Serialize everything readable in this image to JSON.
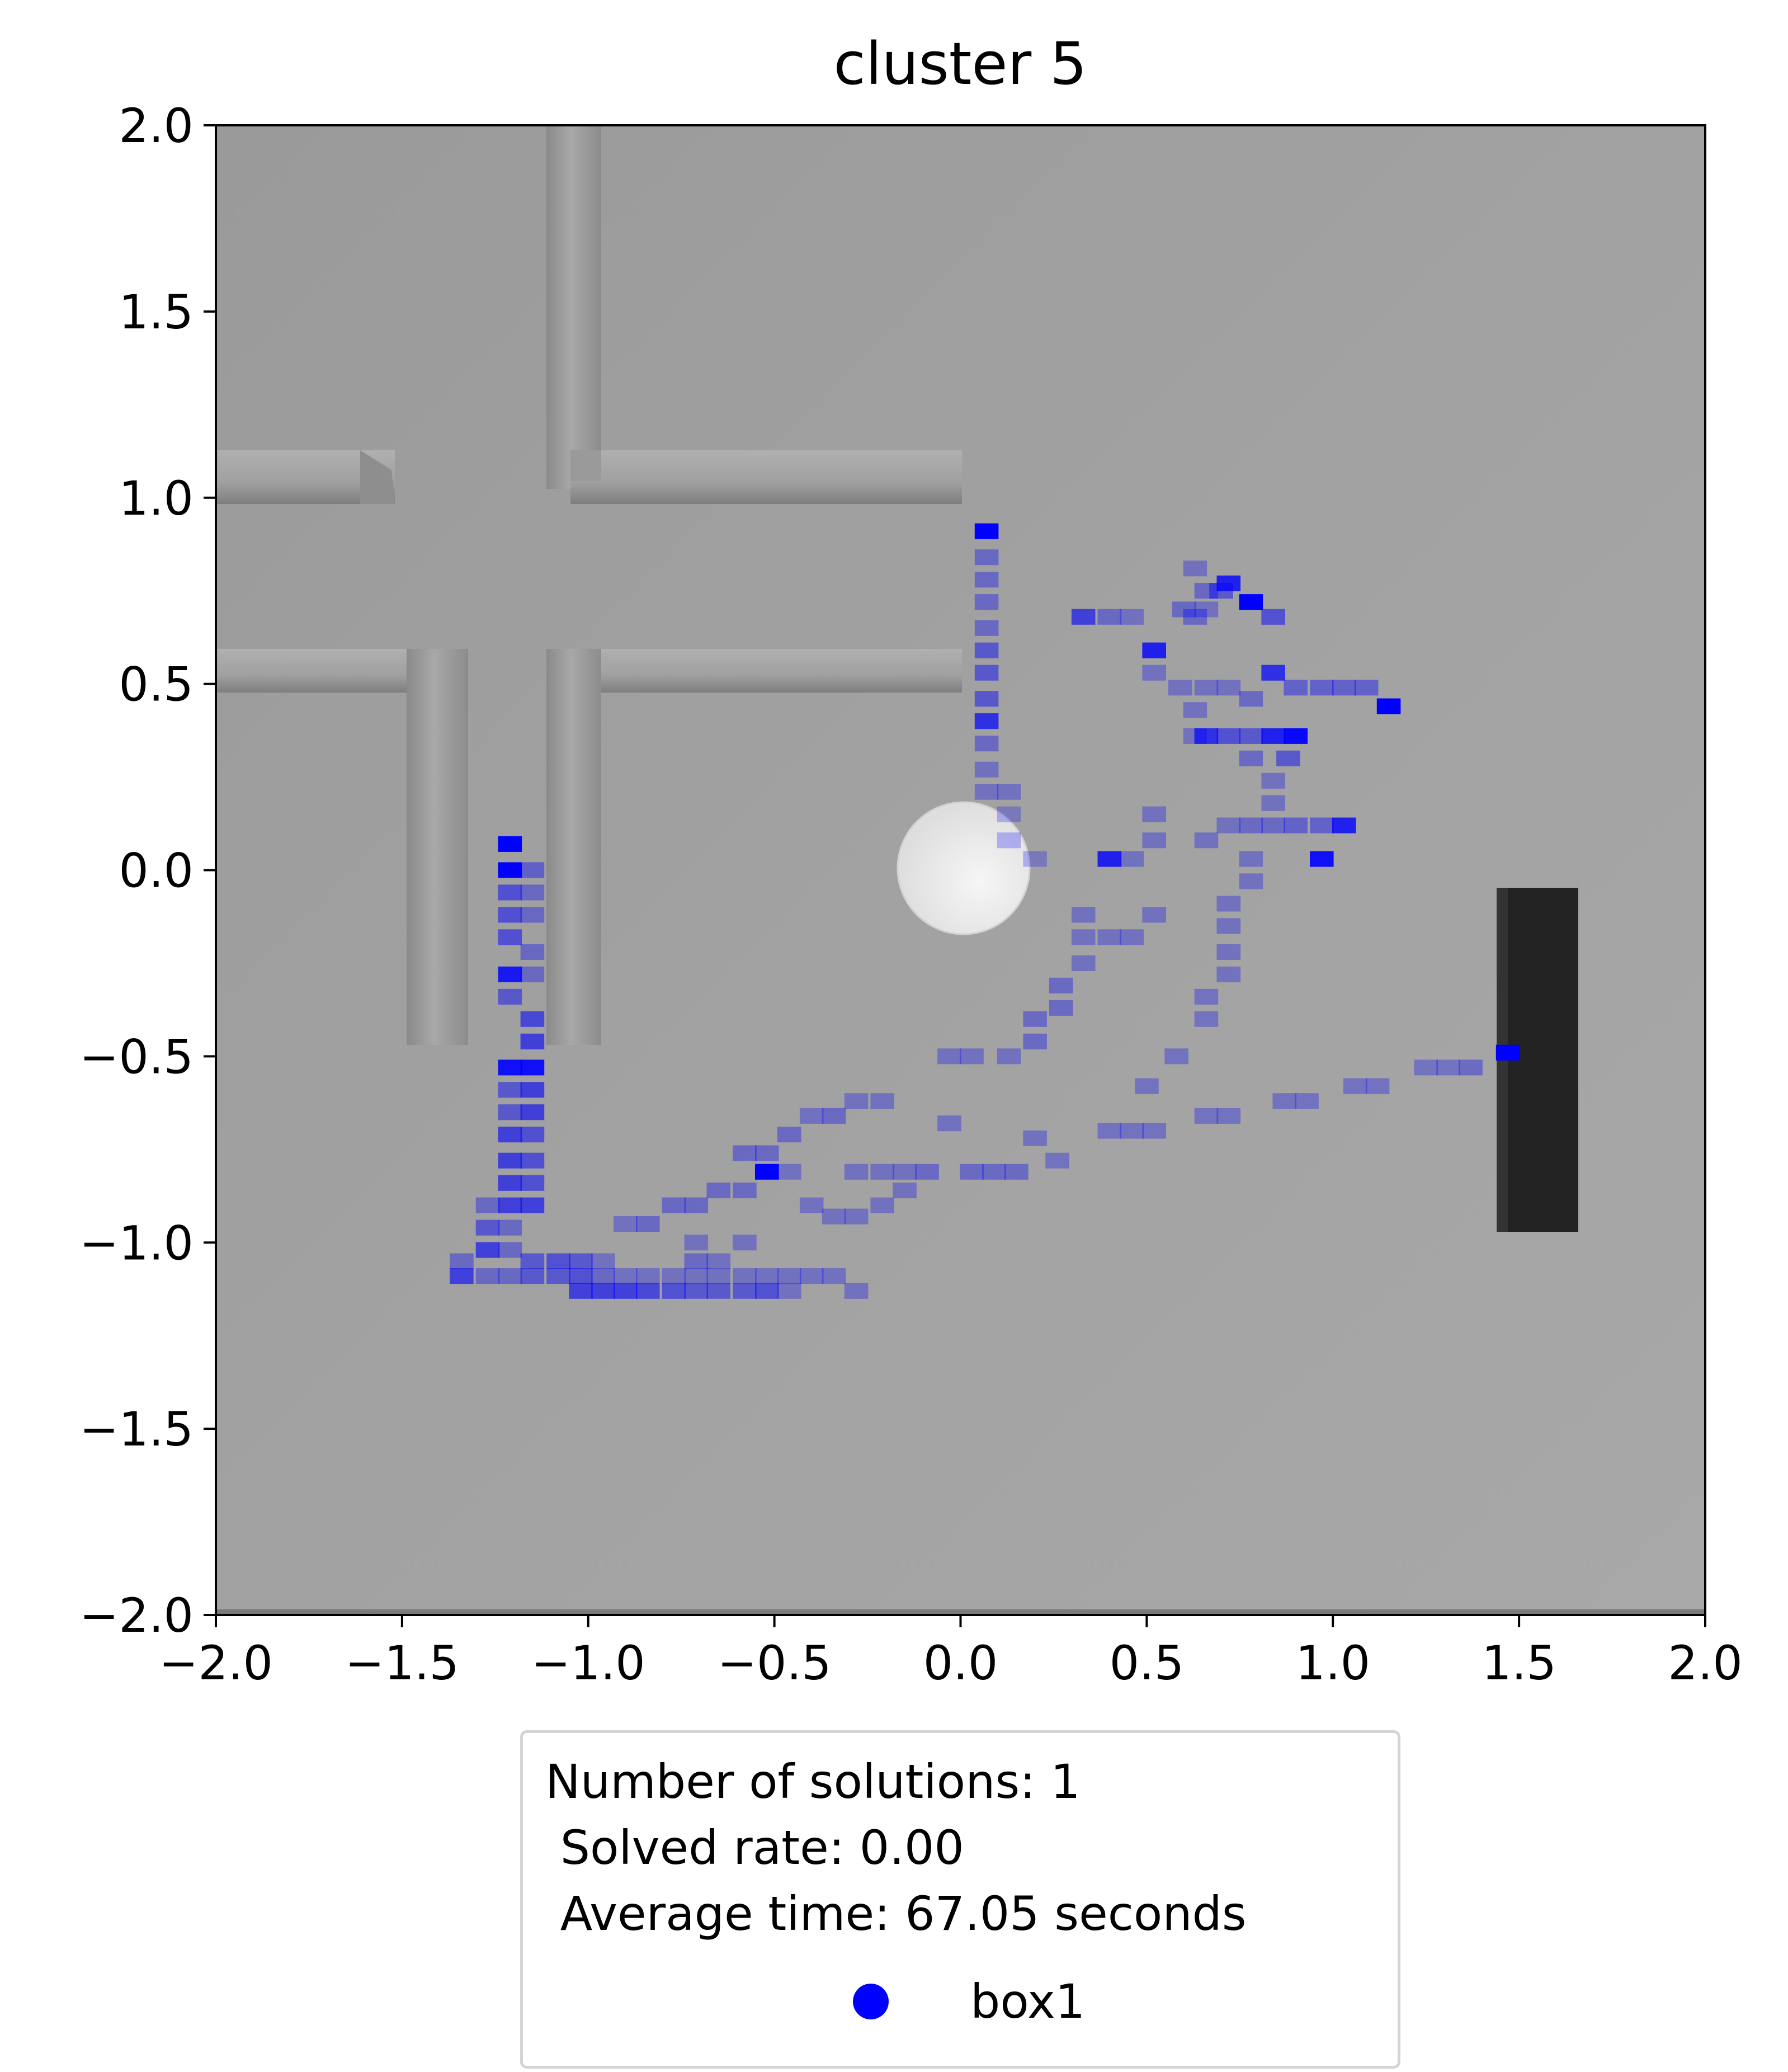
{
  "chart_data": {
    "type": "heatmap",
    "title": "cluster 5",
    "xlabel": "",
    "ylabel": "",
    "xlim": [
      -2.0,
      2.0
    ],
    "ylim": [
      -2.0,
      2.0
    ],
    "x_ticks": [
      "−2.0",
      "−1.5",
      "−1.0",
      "−0.5",
      "0.0",
      "0.5",
      "1.0",
      "1.5",
      "2.0"
    ],
    "y_ticks": [
      "2.0",
      "1.5",
      "1.0",
      "0.5",
      "0.0",
      "−0.5",
      "−1.0",
      "−1.5",
      "−2.0"
    ],
    "grid": false,
    "legend_position": "below plot",
    "series": [
      {
        "name": "box1",
        "color": "#0000ff",
        "cell_size": 0.064,
        "points": [
          [
            0.07,
            0.91,
            1.0
          ],
          [
            0.07,
            0.84,
            0.35
          ],
          [
            0.07,
            0.78,
            0.35
          ],
          [
            0.07,
            0.72,
            0.35
          ],
          [
            0.07,
            0.65,
            0.35
          ],
          [
            0.07,
            0.59,
            0.45
          ],
          [
            0.07,
            0.53,
            0.45
          ],
          [
            0.07,
            0.46,
            0.45
          ],
          [
            0.07,
            0.4,
            0.7
          ],
          [
            0.07,
            0.34,
            0.35
          ],
          [
            0.07,
            0.27,
            0.3
          ],
          [
            0.07,
            0.21,
            0.3
          ],
          [
            0.13,
            0.21,
            0.3
          ],
          [
            0.13,
            0.15,
            0.25
          ],
          [
            0.2,
            0.03,
            0.25
          ],
          [
            0.13,
            0.08,
            0.25
          ],
          [
            0.33,
            0.68,
            0.6
          ],
          [
            0.4,
            0.68,
            0.35
          ],
          [
            0.46,
            0.68,
            0.3
          ],
          [
            0.52,
            0.59,
            0.8
          ],
          [
            0.52,
            0.53,
            0.3
          ],
          [
            0.59,
            0.49,
            0.3
          ],
          [
            0.63,
            0.81,
            0.3
          ],
          [
            0.66,
            0.75,
            0.35
          ],
          [
            0.7,
            0.75,
            0.45
          ],
          [
            0.6,
            0.7,
            0.35
          ],
          [
            0.66,
            0.7,
            0.3
          ],
          [
            0.72,
            0.77,
            0.8
          ],
          [
            0.78,
            0.72,
            1.0
          ],
          [
            0.84,
            0.68,
            0.5
          ],
          [
            0.84,
            0.53,
            0.7
          ],
          [
            0.63,
            0.68,
            0.35
          ],
          [
            0.66,
            0.49,
            0.3
          ],
          [
            0.72,
            0.49,
            0.3
          ],
          [
            0.78,
            0.46,
            0.35
          ],
          [
            0.63,
            0.43,
            0.3
          ],
          [
            0.9,
            0.49,
            0.4
          ],
          [
            0.97,
            0.49,
            0.4
          ],
          [
            1.03,
            0.49,
            0.4
          ],
          [
            1.09,
            0.49,
            0.4
          ],
          [
            1.15,
            0.44,
            1.0
          ],
          [
            0.63,
            0.36,
            0.3
          ],
          [
            0.66,
            0.36,
            0.7
          ],
          [
            0.72,
            0.36,
            0.5
          ],
          [
            0.78,
            0.36,
            0.45
          ],
          [
            0.84,
            0.36,
            0.8
          ],
          [
            0.9,
            0.36,
            0.95
          ],
          [
            0.88,
            0.3,
            0.45
          ],
          [
            0.78,
            0.3,
            0.35
          ],
          [
            0.84,
            0.24,
            0.3
          ],
          [
            0.84,
            0.18,
            0.3
          ],
          [
            0.72,
            0.12,
            0.3
          ],
          [
            0.78,
            0.12,
            0.35
          ],
          [
            0.84,
            0.12,
            0.35
          ],
          [
            0.9,
            0.12,
            0.4
          ],
          [
            0.97,
            0.12,
            0.4
          ],
          [
            1.03,
            0.12,
            0.8
          ],
          [
            0.97,
            0.03,
            0.9
          ],
          [
            0.52,
            0.15,
            0.3
          ],
          [
            0.52,
            0.08,
            0.3
          ],
          [
            0.4,
            0.03,
            0.8
          ],
          [
            0.46,
            0.03,
            0.3
          ],
          [
            0.66,
            0.08,
            0.3
          ],
          [
            0.78,
            0.03,
            0.3
          ],
          [
            0.78,
            -0.03,
            0.3
          ],
          [
            0.72,
            -0.09,
            0.3
          ],
          [
            0.72,
            -0.15,
            0.3
          ],
          [
            0.72,
            -0.22,
            0.3
          ],
          [
            0.72,
            -0.28,
            0.3
          ],
          [
            0.33,
            -0.12,
            0.3
          ],
          [
            0.33,
            -0.18,
            0.3
          ],
          [
            0.4,
            -0.18,
            0.3
          ],
          [
            0.46,
            -0.18,
            0.3
          ],
          [
            0.52,
            -0.12,
            0.3
          ],
          [
            0.33,
            -0.25,
            0.3
          ],
          [
            0.27,
            -0.31,
            0.35
          ],
          [
            0.27,
            -0.37,
            0.35
          ],
          [
            0.2,
            -0.4,
            0.35
          ],
          [
            0.2,
            -0.46,
            0.35
          ],
          [
            0.13,
            -0.5,
            0.3
          ],
          [
            0.66,
            -0.34,
            0.3
          ],
          [
            0.66,
            -0.4,
            0.3
          ],
          [
            0.58,
            -0.5,
            0.3
          ],
          [
            0.5,
            -0.58,
            0.3
          ],
          [
            0.03,
            -0.5,
            0.3
          ],
          [
            -0.03,
            -0.5,
            0.3
          ],
          [
            -0.21,
            -0.62,
            0.3
          ],
          [
            -0.28,
            -0.62,
            0.3
          ],
          [
            -0.34,
            -0.66,
            0.35
          ],
          [
            -0.4,
            -0.66,
            0.3
          ],
          [
            -0.46,
            -0.71,
            0.35
          ],
          [
            -0.52,
            -0.76,
            0.35
          ],
          [
            -0.58,
            -0.76,
            0.35
          ],
          [
            -0.52,
            -0.81,
            1.0
          ],
          [
            -0.46,
            -0.81,
            0.3
          ],
          [
            -0.58,
            -0.86,
            0.35
          ],
          [
            -0.65,
            -0.86,
            0.35
          ],
          [
            -0.71,
            -0.9,
            0.35
          ],
          [
            -0.77,
            -0.9,
            0.35
          ],
          [
            -0.84,
            -0.95,
            0.35
          ],
          [
            -0.9,
            -0.95,
            0.3
          ],
          [
            -0.03,
            -0.68,
            0.3
          ],
          [
            0.03,
            -0.81,
            0.35
          ],
          [
            0.09,
            -0.81,
            0.35
          ],
          [
            0.15,
            -0.81,
            0.35
          ],
          [
            0.26,
            -0.78,
            0.3
          ],
          [
            0.2,
            -0.72,
            0.3
          ],
          [
            0.4,
            -0.7,
            0.3
          ],
          [
            0.46,
            -0.7,
            0.3
          ],
          [
            0.52,
            -0.7,
            0.3
          ],
          [
            0.66,
            -0.66,
            0.3
          ],
          [
            0.72,
            -0.66,
            0.3
          ],
          [
            0.87,
            -0.62,
            0.3
          ],
          [
            0.93,
            -0.62,
            0.3
          ],
          [
            1.06,
            -0.58,
            0.3
          ],
          [
            1.12,
            -0.58,
            0.3
          ],
          [
            1.25,
            -0.53,
            0.3
          ],
          [
            1.31,
            -0.53,
            0.3
          ],
          [
            1.37,
            -0.53,
            0.35
          ],
          [
            1.47,
            -0.49,
            1.0
          ],
          [
            -0.28,
            -0.81,
            0.3
          ],
          [
            -0.21,
            -0.81,
            0.3
          ],
          [
            -0.15,
            -0.81,
            0.3
          ],
          [
            -0.09,
            -0.81,
            0.35
          ],
          [
            -0.15,
            -0.86,
            0.3
          ],
          [
            -0.21,
            -0.9,
            0.3
          ],
          [
            -0.28,
            -0.93,
            0.3
          ],
          [
            -0.34,
            -0.93,
            0.3
          ],
          [
            -0.4,
            -0.9,
            0.3
          ],
          [
            -0.58,
            -1.0,
            0.3
          ],
          [
            -0.65,
            -1.05,
            0.3
          ],
          [
            -0.71,
            -1.0,
            0.3
          ],
          [
            -0.71,
            -1.05,
            0.35
          ],
          [
            -1.21,
            0.07,
            1.0
          ],
          [
            -1.21,
            0.0,
            1.0
          ],
          [
            -1.15,
            0.0,
            0.4
          ],
          [
            -1.21,
            -0.06,
            0.5
          ],
          [
            -1.15,
            -0.06,
            0.35
          ],
          [
            -1.21,
            -0.12,
            0.5
          ],
          [
            -1.15,
            -0.12,
            0.35
          ],
          [
            -1.21,
            -0.18,
            0.5
          ],
          [
            -1.15,
            -0.22,
            0.35
          ],
          [
            -1.21,
            -0.28,
            0.85
          ],
          [
            -1.15,
            -0.28,
            0.35
          ],
          [
            -1.21,
            -0.34,
            0.45
          ],
          [
            -1.15,
            -0.4,
            0.55
          ],
          [
            -1.15,
            -0.46,
            0.6
          ],
          [
            -1.21,
            -0.53,
            0.9
          ],
          [
            -1.15,
            -0.53,
            0.9
          ],
          [
            -1.21,
            -0.59,
            0.45
          ],
          [
            -1.15,
            -0.59,
            0.6
          ],
          [
            -1.21,
            -0.65,
            0.45
          ],
          [
            -1.15,
            -0.65,
            0.6
          ],
          [
            -1.21,
            -0.71,
            0.6
          ],
          [
            -1.15,
            -0.71,
            0.5
          ],
          [
            -1.21,
            -0.78,
            0.6
          ],
          [
            -1.15,
            -0.78,
            0.5
          ],
          [
            -1.21,
            -0.84,
            0.6
          ],
          [
            -1.15,
            -0.84,
            0.5
          ],
          [
            -1.27,
            -0.9,
            0.35
          ],
          [
            -1.21,
            -0.9,
            0.6
          ],
          [
            -1.15,
            -0.9,
            0.6
          ],
          [
            -1.27,
            -0.96,
            0.45
          ],
          [
            -1.21,
            -0.96,
            0.35
          ],
          [
            -1.27,
            -1.02,
            0.6
          ],
          [
            -1.21,
            -1.02,
            0.35
          ],
          [
            -1.34,
            -1.05,
            0.35
          ],
          [
            -1.15,
            -1.05,
            0.45
          ],
          [
            -1.08,
            -1.05,
            0.5
          ],
          [
            -1.02,
            -1.05,
            0.45
          ],
          [
            -0.96,
            -1.05,
            0.3
          ],
          [
            -1.34,
            -1.09,
            0.6
          ],
          [
            -1.27,
            -1.09,
            0.35
          ],
          [
            -1.21,
            -1.09,
            0.35
          ],
          [
            -1.15,
            -1.09,
            0.45
          ],
          [
            -1.08,
            -1.09,
            0.45
          ],
          [
            -1.02,
            -1.09,
            0.5
          ],
          [
            -0.96,
            -1.09,
            0.35
          ],
          [
            -0.9,
            -1.09,
            0.3
          ],
          [
            -0.84,
            -1.09,
            0.3
          ],
          [
            -0.77,
            -1.09,
            0.3
          ],
          [
            -0.71,
            -1.09,
            0.3
          ],
          [
            -0.65,
            -1.09,
            0.3
          ],
          [
            -0.58,
            -1.09,
            0.3
          ],
          [
            -0.52,
            -1.09,
            0.3
          ],
          [
            -0.46,
            -1.09,
            0.3
          ],
          [
            -0.4,
            -1.09,
            0.3
          ],
          [
            -0.34,
            -1.09,
            0.3
          ],
          [
            -1.02,
            -1.13,
            0.6
          ],
          [
            -0.96,
            -1.13,
            0.6
          ],
          [
            -0.9,
            -1.13,
            0.6
          ],
          [
            -0.84,
            -1.13,
            0.55
          ],
          [
            -0.77,
            -1.13,
            0.5
          ],
          [
            -0.71,
            -1.13,
            0.45
          ],
          [
            -0.65,
            -1.13,
            0.45
          ],
          [
            -0.58,
            -1.13,
            0.45
          ],
          [
            -0.52,
            -1.13,
            0.5
          ],
          [
            -0.46,
            -1.13,
            0.3
          ],
          [
            -0.28,
            -1.13,
            0.3
          ]
        ]
      }
    ]
  },
  "legend": {
    "title": "Number of solutions: 1\n Solved rate: 0.00\n Average time: 67.05 seconds",
    "entry_label": "box1"
  },
  "scene": {
    "floor_color": "#a4a4a4",
    "wall_color": "#9c9c9c",
    "sphere_color": "#ececec",
    "box_color": "#232323"
  }
}
